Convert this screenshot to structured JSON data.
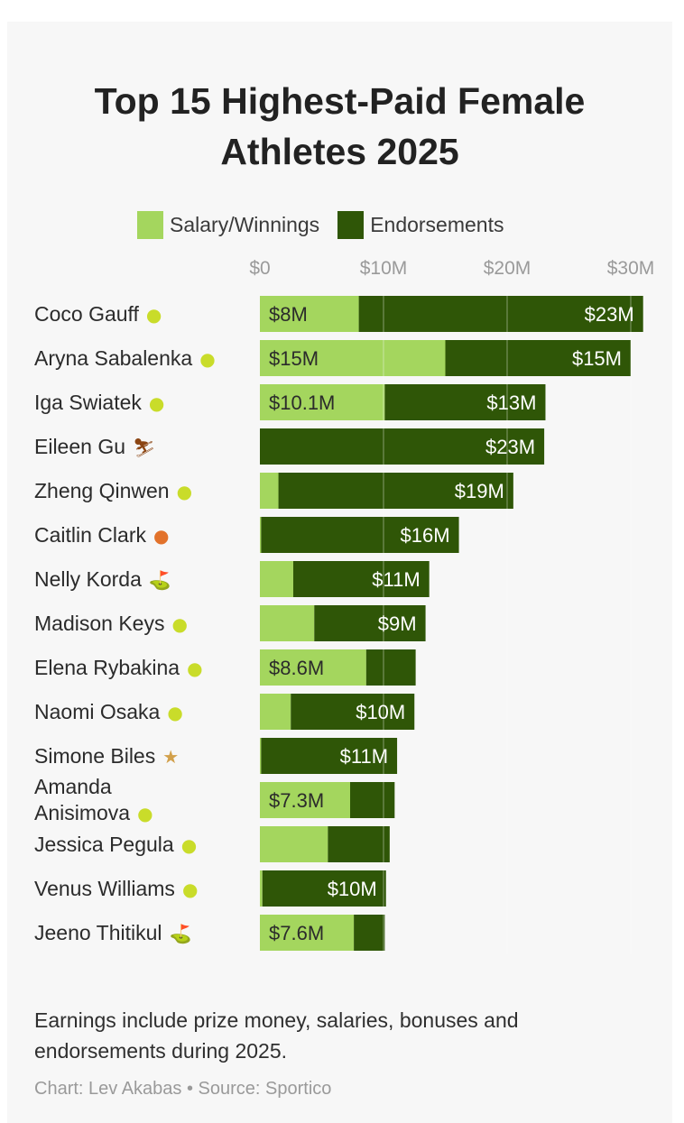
{
  "title_line1": "Top 15 Highest-Paid Female",
  "title_line2": "Athletes 2025",
  "colors": {
    "salary": "#a4d65e",
    "endorsements": "#2f5607",
    "background": "#f7f7f7"
  },
  "legend": {
    "salary": "Salary/Winnings",
    "endorsements": "Endorsements"
  },
  "note": "Earnings include prize money, salaries, bonuses and endorsements during 2025.",
  "credit": "Chart: Lev Akabas • Source: Sportico",
  "chart_data": {
    "type": "bar",
    "orientation": "horizontal",
    "stacked": true,
    "x_ticks": [
      "$0",
      "$10M",
      "$20M",
      "$30M"
    ],
    "x_tick_values": [
      0,
      10,
      20,
      30
    ],
    "xlim": [
      0,
      31
    ],
    "grid": true,
    "legend_position": "top",
    "categories": [
      {
        "name": "Coco Gauff",
        "sport": "tennis"
      },
      {
        "name": "Aryna Sabalenka",
        "sport": "tennis"
      },
      {
        "name": "Iga Swiatek",
        "sport": "tennis"
      },
      {
        "name": "Eileen Gu",
        "sport": "skiing"
      },
      {
        "name": "Zheng Qinwen",
        "sport": "tennis"
      },
      {
        "name": "Caitlin Clark",
        "sport": "basketball"
      },
      {
        "name": "Nelly Korda",
        "sport": "golf"
      },
      {
        "name": "Madison Keys",
        "sport": "tennis"
      },
      {
        "name": "Elena Rybakina",
        "sport": "tennis"
      },
      {
        "name": "Naomi Osaka",
        "sport": "tennis"
      },
      {
        "name": "Simone Biles",
        "sport": "gymnastics"
      },
      {
        "name": "Amanda Anisimova",
        "sport": "tennis",
        "lines": [
          "Amanda",
          "Anisimova"
        ]
      },
      {
        "name": "Jessica Pegula",
        "sport": "tennis"
      },
      {
        "name": "Venus Williams",
        "sport": "tennis"
      },
      {
        "name": "Jeeno Thitikul",
        "sport": "golf"
      }
    ],
    "series": [
      {
        "name": "Salary/Winnings",
        "values": [
          8,
          15,
          10.1,
          0,
          1.5,
          0.1,
          2.7,
          4.4,
          8.6,
          2.5,
          0.1,
          7.3,
          5.5,
          0.2,
          7.6
        ],
        "labels": [
          "$8M",
          "$15M",
          "$10.1M",
          "",
          "",
          "",
          "",
          "",
          "$8.6M",
          "",
          "",
          "$7.3M",
          "",
          "",
          "$7.6M"
        ]
      },
      {
        "name": "Endorsements",
        "values": [
          23,
          15,
          13,
          23,
          19,
          16,
          11,
          9,
          4,
          10,
          11,
          3.6,
          5,
          10,
          2.5
        ],
        "labels": [
          "$23M",
          "$15M",
          "$13M",
          "$23M",
          "$19M",
          "$16M",
          "$11M",
          "$9M",
          "",
          "$10M",
          "$11M",
          "",
          "",
          "$10M",
          ""
        ]
      }
    ]
  }
}
